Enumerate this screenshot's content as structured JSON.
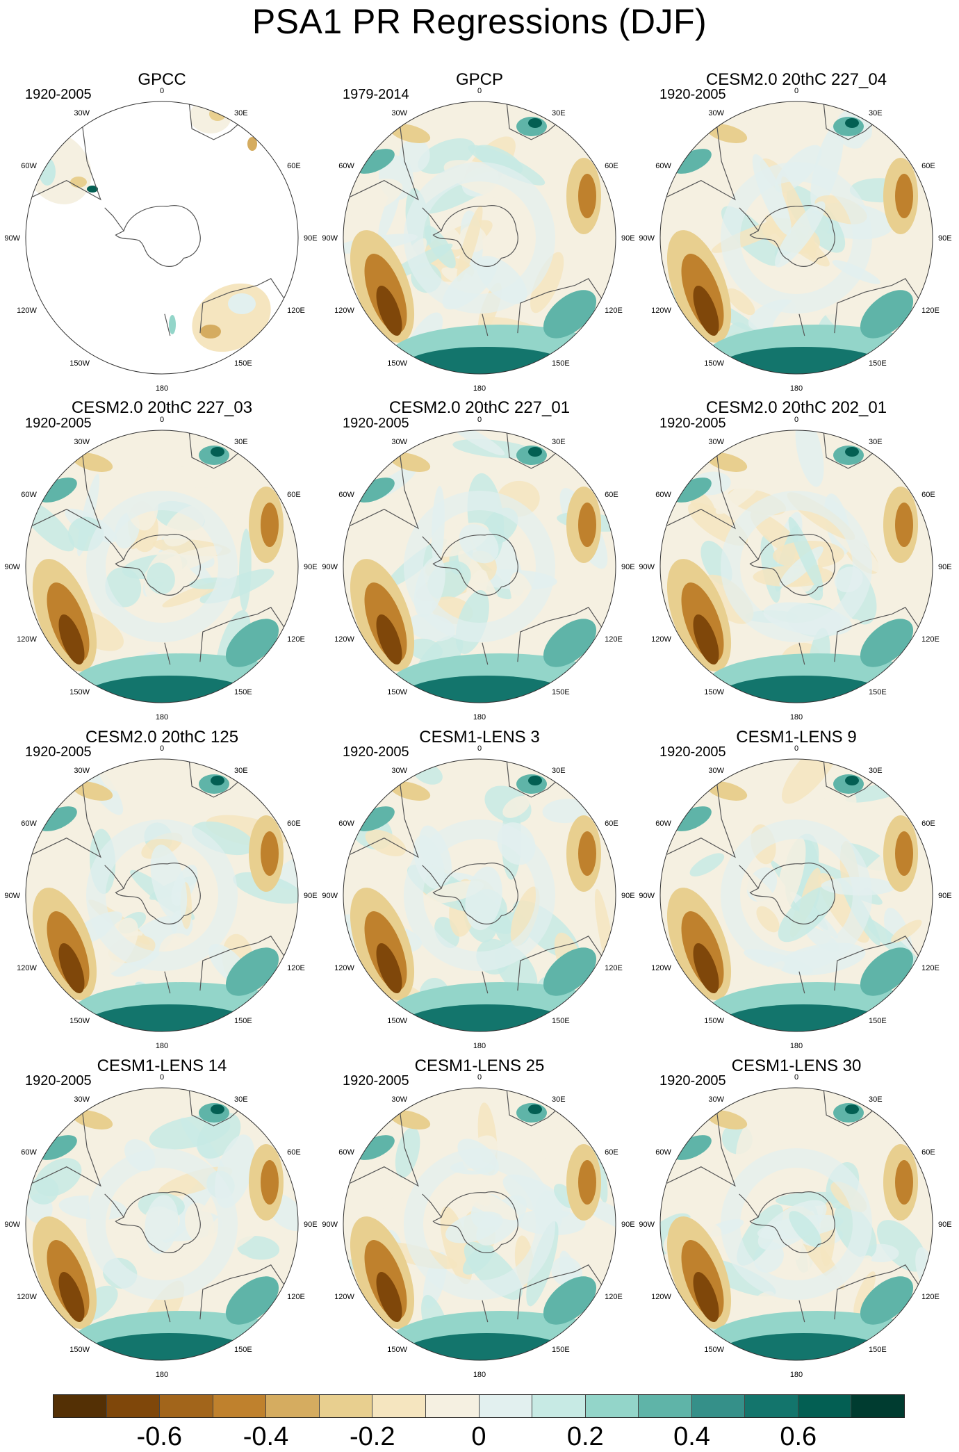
{
  "title": "PSA1 PR Regressions (DJF)",
  "longitude_labels": [
    "0",
    "30E",
    "60E",
    "90E",
    "120E",
    "150E",
    "180",
    "150W",
    "120W",
    "90W",
    "60W",
    "30W"
  ],
  "panels": [
    {
      "title": "GPCC",
      "period": "1920-2005",
      "land_only": true
    },
    {
      "title": "GPCP",
      "period": "1979-2014"
    },
    {
      "title": "CESM2.0 20thC 227_04",
      "period": "1920-2005"
    },
    {
      "title": "CESM2.0 20thC 227_03",
      "period": "1920-2005"
    },
    {
      "title": "CESM2.0 20thC 227_01",
      "period": "1920-2005"
    },
    {
      "title": "CESM2.0 20thC 202_01",
      "period": "1920-2005"
    },
    {
      "title": "CESM2.0 20thC 125",
      "period": "1920-2005"
    },
    {
      "title": "CESM1-LENS 3",
      "period": "1920-2005"
    },
    {
      "title": "CESM1-LENS 9",
      "period": "1920-2005"
    },
    {
      "title": "CESM1-LENS 14",
      "period": "1920-2005"
    },
    {
      "title": "CESM1-LENS 25",
      "period": "1920-2005"
    },
    {
      "title": "CESM1-LENS 30",
      "period": "1920-2005"
    }
  ],
  "colorbar": {
    "colors": [
      "#543005",
      "#7f470a",
      "#a2651b",
      "#bf812d",
      "#d5ac60",
      "#e8cf8f",
      "#f5e5bf",
      "#f5f0e1",
      "#e2f0ef",
      "#c7eae4",
      "#93d5c9",
      "#5fb4a8",
      "#359089",
      "#13756c",
      "#035f53",
      "#003c30"
    ],
    "ticks": [
      "-0.6",
      "-0.4",
      "-0.2",
      "0",
      "0.2",
      "0.4",
      "0.6"
    ]
  }
}
